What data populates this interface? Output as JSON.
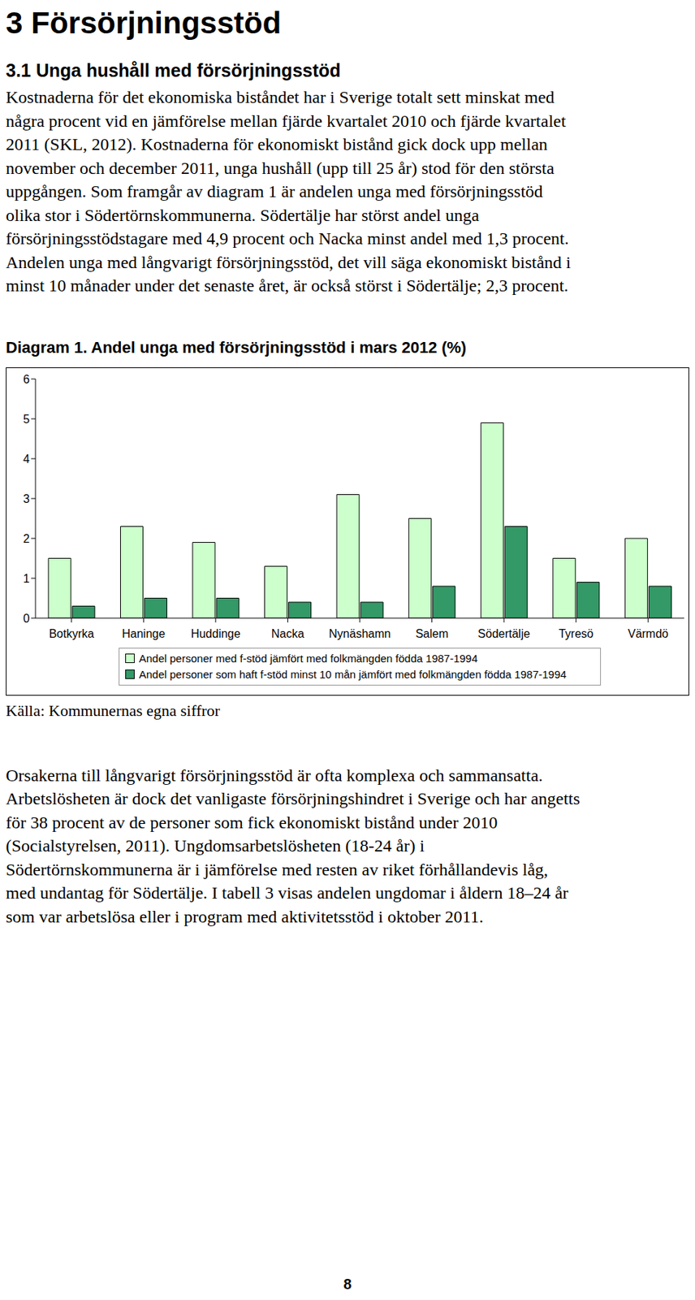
{
  "heading": "3 Försörjningsstöd",
  "subheading": "3.1 Unga hushåll med försörjningsstöd",
  "paragraphs_before": [
    [
      "Kostnaderna för det ekonomiska biståndet har i Sverige totalt sett minskat med",
      "några procent vid en jämförelse mellan fjärde kvartalet 2010 och fjärde kvartalet",
      "2011 (SKL, 2012). Kostnaderna för ekonomiskt bistånd gick dock upp mellan",
      "november och december 2011, unga hushåll (upp till 25 år) stod för den största",
      "uppgången. Som framgår av diagram 1 är andelen unga med försörjningsstöd",
      "olika stor i Södertörnskommunerna. Södertälje har störst andel unga",
      "försörjningsstödstagare med 4,9 procent och Nacka minst andel med 1,3 procent.",
      "Andelen unga med långvarigt försörjningsstöd, det vill säga ekonomiskt bistånd i",
      "minst 10 månader under det senaste året, är också störst i Södertälje; 2,3 procent."
    ]
  ],
  "chart_data": {
    "type": "bar",
    "title": "Diagram 1. Andel unga med försörjningsstöd i mars 2012 (%)",
    "categories": [
      "Botkyrka",
      "Haninge",
      "Huddinge",
      "Nacka",
      "Nynäshamn",
      "Salem",
      "Södertälje",
      "Tyresö",
      "Värmdö"
    ],
    "series": [
      {
        "name": "Andel personer med f-stöd jämfört med folkmängden födda 1987-1994",
        "color": "#ccffcc",
        "values": [
          1.5,
          2.3,
          1.9,
          1.3,
          3.1,
          2.5,
          4.9,
          1.5,
          2.0
        ]
      },
      {
        "name": "Andel personer som haft f-stöd minst 10 mån jämfört med folkmängden födda 1987-1994",
        "color": "#339966",
        "values": [
          0.3,
          0.5,
          0.5,
          0.4,
          0.4,
          0.8,
          2.3,
          0.9,
          0.8
        ]
      }
    ],
    "ylim": [
      0,
      6
    ],
    "yticks": [
      0,
      1,
      2,
      3,
      4,
      5,
      6
    ],
    "grid": false,
    "legend": "bottom"
  },
  "source": "Källa: Kommunernas egna siffror",
  "paragraphs_after": [
    [
      "Orsakerna till långvarigt försörjningsstöd är ofta komplexa och sammansatta.",
      "Arbetslösheten är dock det vanligaste försörjningshindret i Sverige och har angetts",
      "för 38 procent av de personer som fick ekonomiskt bistånd under 2010",
      "(Socialstyrelsen, 2011). Ungdomsarbetslösheten (18-24 år) i",
      "Södertörnskommunerna är i jämförelse med resten av riket förhållandevis låg,",
      "med undantag för Södertälje. I tabell 3 visas andelen ungdomar i åldern 18–24 år",
      "som var arbetslösa eller i program med aktivitetsstöd i oktober 2011."
    ]
  ],
  "page_number": "8"
}
